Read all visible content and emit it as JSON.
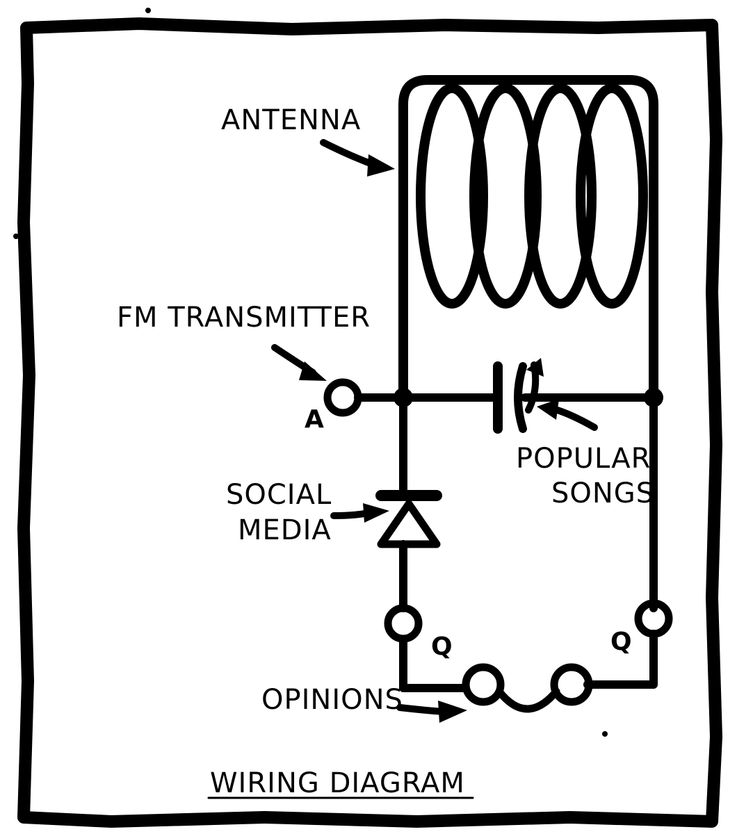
{
  "labels": {
    "antenna": "ANTENNA",
    "fm_transmitter": "FM TRANSMITTER",
    "popular_songs": [
      "POPULAR",
      "SONGS"
    ],
    "social_media": [
      "SOCIAL",
      "MEDIA"
    ],
    "opinions": "OPINIONS",
    "title": "WIRING DIAGRAM"
  },
  "terminals": {
    "a": "A",
    "left_bottom": "Q",
    "right_bottom": "Q"
  },
  "colors": {
    "ink": "#000000",
    "paper": "#ffffff"
  }
}
